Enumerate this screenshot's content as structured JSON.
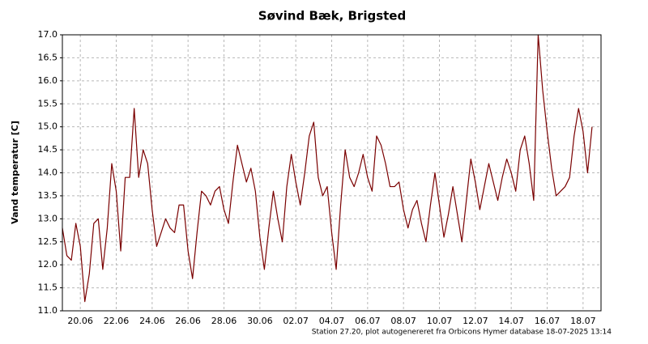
{
  "chart_data": {
    "type": "line",
    "title": "Søvind Bæk, Brigsted",
    "y_label": "Vand temperatur [C]",
    "footer": "Station 27.20, plot autogenereret fra Orbicons Hymer database 18-07-2025 13:14",
    "categories": [
      null,
      null,
      null,
      null,
      "20.06",
      null,
      null,
      null,
      null,
      null,
      null,
      null,
      "22.06",
      null,
      null,
      null,
      null,
      null,
      null,
      null,
      "24.06",
      null,
      null,
      null,
      null,
      null,
      null,
      null,
      "26.06",
      null,
      null,
      null,
      null,
      null,
      null,
      null,
      "28.06",
      null,
      null,
      null,
      null,
      null,
      null,
      null,
      "30.06",
      null,
      null,
      null,
      null,
      null,
      null,
      null,
      "02.07",
      null,
      null,
      null,
      null,
      null,
      null,
      null,
      "04.07",
      null,
      null,
      null,
      null,
      null,
      null,
      null,
      "06.07",
      null,
      null,
      null,
      null,
      null,
      null,
      null,
      "08.07",
      null,
      null,
      null,
      null,
      null,
      null,
      null,
      "10.07",
      null,
      null,
      null,
      null,
      null,
      null,
      null,
      "12.07",
      null,
      null,
      null,
      null,
      null,
      null,
      null,
      "14.07",
      null,
      null,
      null,
      null,
      null,
      null,
      null,
      "16.07",
      null,
      null,
      null,
      null,
      null,
      null,
      null,
      "18.07",
      null,
      null,
      null,
      null
    ],
    "series": [
      {
        "name": "Vand temperatur",
        "color": "#7a0000",
        "values": [
          12.8,
          12.2,
          12.1,
          12.9,
          12.4,
          11.2,
          11.8,
          12.9,
          13.0,
          11.9,
          12.8,
          14.2,
          13.6,
          12.3,
          13.9,
          13.9,
          15.4,
          13.9,
          14.5,
          14.2,
          13.2,
          12.4,
          12.7,
          13.0,
          12.8,
          12.7,
          13.3,
          13.3,
          12.3,
          11.7,
          12.7,
          13.6,
          13.5,
          13.3,
          13.6,
          13.7,
          13.2,
          12.9,
          13.8,
          14.6,
          14.2,
          13.8,
          14.1,
          13.6,
          12.6,
          11.9,
          12.8,
          13.6,
          13.0,
          12.5,
          13.7,
          14.4,
          13.8,
          13.3,
          14.0,
          14.8,
          15.1,
          13.9,
          13.5,
          13.7,
          12.7,
          11.9,
          13.3,
          14.5,
          13.9,
          13.7,
          14.0,
          14.4,
          13.9,
          13.6,
          14.8,
          14.6,
          14.2,
          13.7,
          13.7,
          13.8,
          13.2,
          12.8,
          13.2,
          13.4,
          12.9,
          12.5,
          13.3,
          14.0,
          13.3,
          12.6,
          13.1,
          13.7,
          13.1,
          12.5,
          13.4,
          14.3,
          13.8,
          13.2,
          13.7,
          14.2,
          13.8,
          13.4,
          13.9,
          14.3,
          14.0,
          13.6,
          14.5,
          14.8,
          14.2,
          13.4,
          17.0,
          15.8,
          14.9,
          14.1,
          13.5,
          13.6,
          13.7,
          13.9,
          14.8,
          15.4,
          14.9,
          14.0,
          15.0,
          null,
          null
        ]
      }
    ],
    "ylim": [
      11.0,
      17.0
    ],
    "yticks": [
      {
        "value": 11.0,
        "label": "11.0"
      },
      {
        "value": 11.5,
        "label": "11.5"
      },
      {
        "value": 12.0,
        "label": "12.0"
      },
      {
        "value": 12.5,
        "label": "12.5"
      },
      {
        "value": 13.0,
        "label": "13.0"
      },
      {
        "value": 13.5,
        "label": "13.5"
      },
      {
        "value": 14.0,
        "label": "14.0"
      },
      {
        "value": 14.5,
        "label": "14.5"
      },
      {
        "value": 15.0,
        "label": "15.0"
      },
      {
        "value": 15.5,
        "label": "15.5"
      },
      {
        "value": 16.0,
        "label": "16.0"
      },
      {
        "value": 16.5,
        "label": "16.5"
      },
      {
        "value": 17.0,
        "label": "17.0"
      }
    ],
    "grid": true
  }
}
